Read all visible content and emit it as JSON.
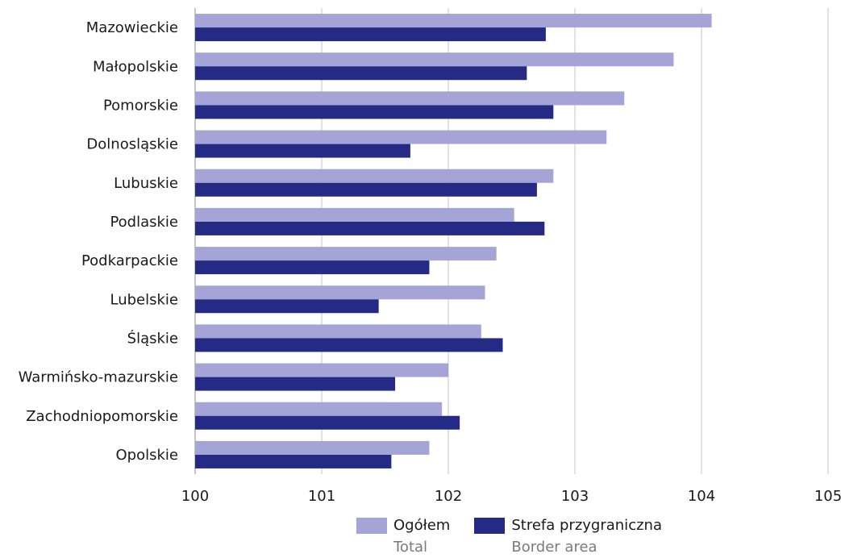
{
  "chart_data": {
    "type": "bar",
    "orientation": "horizontal",
    "categories": [
      "Mazowieckie",
      "Małopolskie",
      "Pomorskie",
      "Dolnosląskie",
      "Lubuskie",
      "Podlaskie",
      "Podkarpackie",
      "Lubelskie",
      "Śląskie",
      "Warmińsko-mazurskie",
      "Zachodniopomorskie",
      "Opolskie"
    ],
    "series": [
      {
        "name": "Ogółem",
        "name_en": "Total",
        "color": "#a5a4d6",
        "values": [
          104.08,
          103.78,
          103.39,
          103.25,
          102.83,
          102.52,
          102.38,
          102.29,
          102.26,
          102.0,
          101.95,
          101.85
        ]
      },
      {
        "name": "Strefa przygraniczna",
        "name_en": "Border area",
        "color": "#252b85",
        "values": [
          102.77,
          102.62,
          102.83,
          101.7,
          102.7,
          102.76,
          101.85,
          101.45,
          102.43,
          101.58,
          102.09,
          101.55
        ]
      }
    ],
    "xlim": [
      100,
      105
    ],
    "xticks": [
      "100",
      "101",
      "102",
      "103",
      "104",
      "105"
    ],
    "grid": true,
    "legend_position": "bottom"
  }
}
